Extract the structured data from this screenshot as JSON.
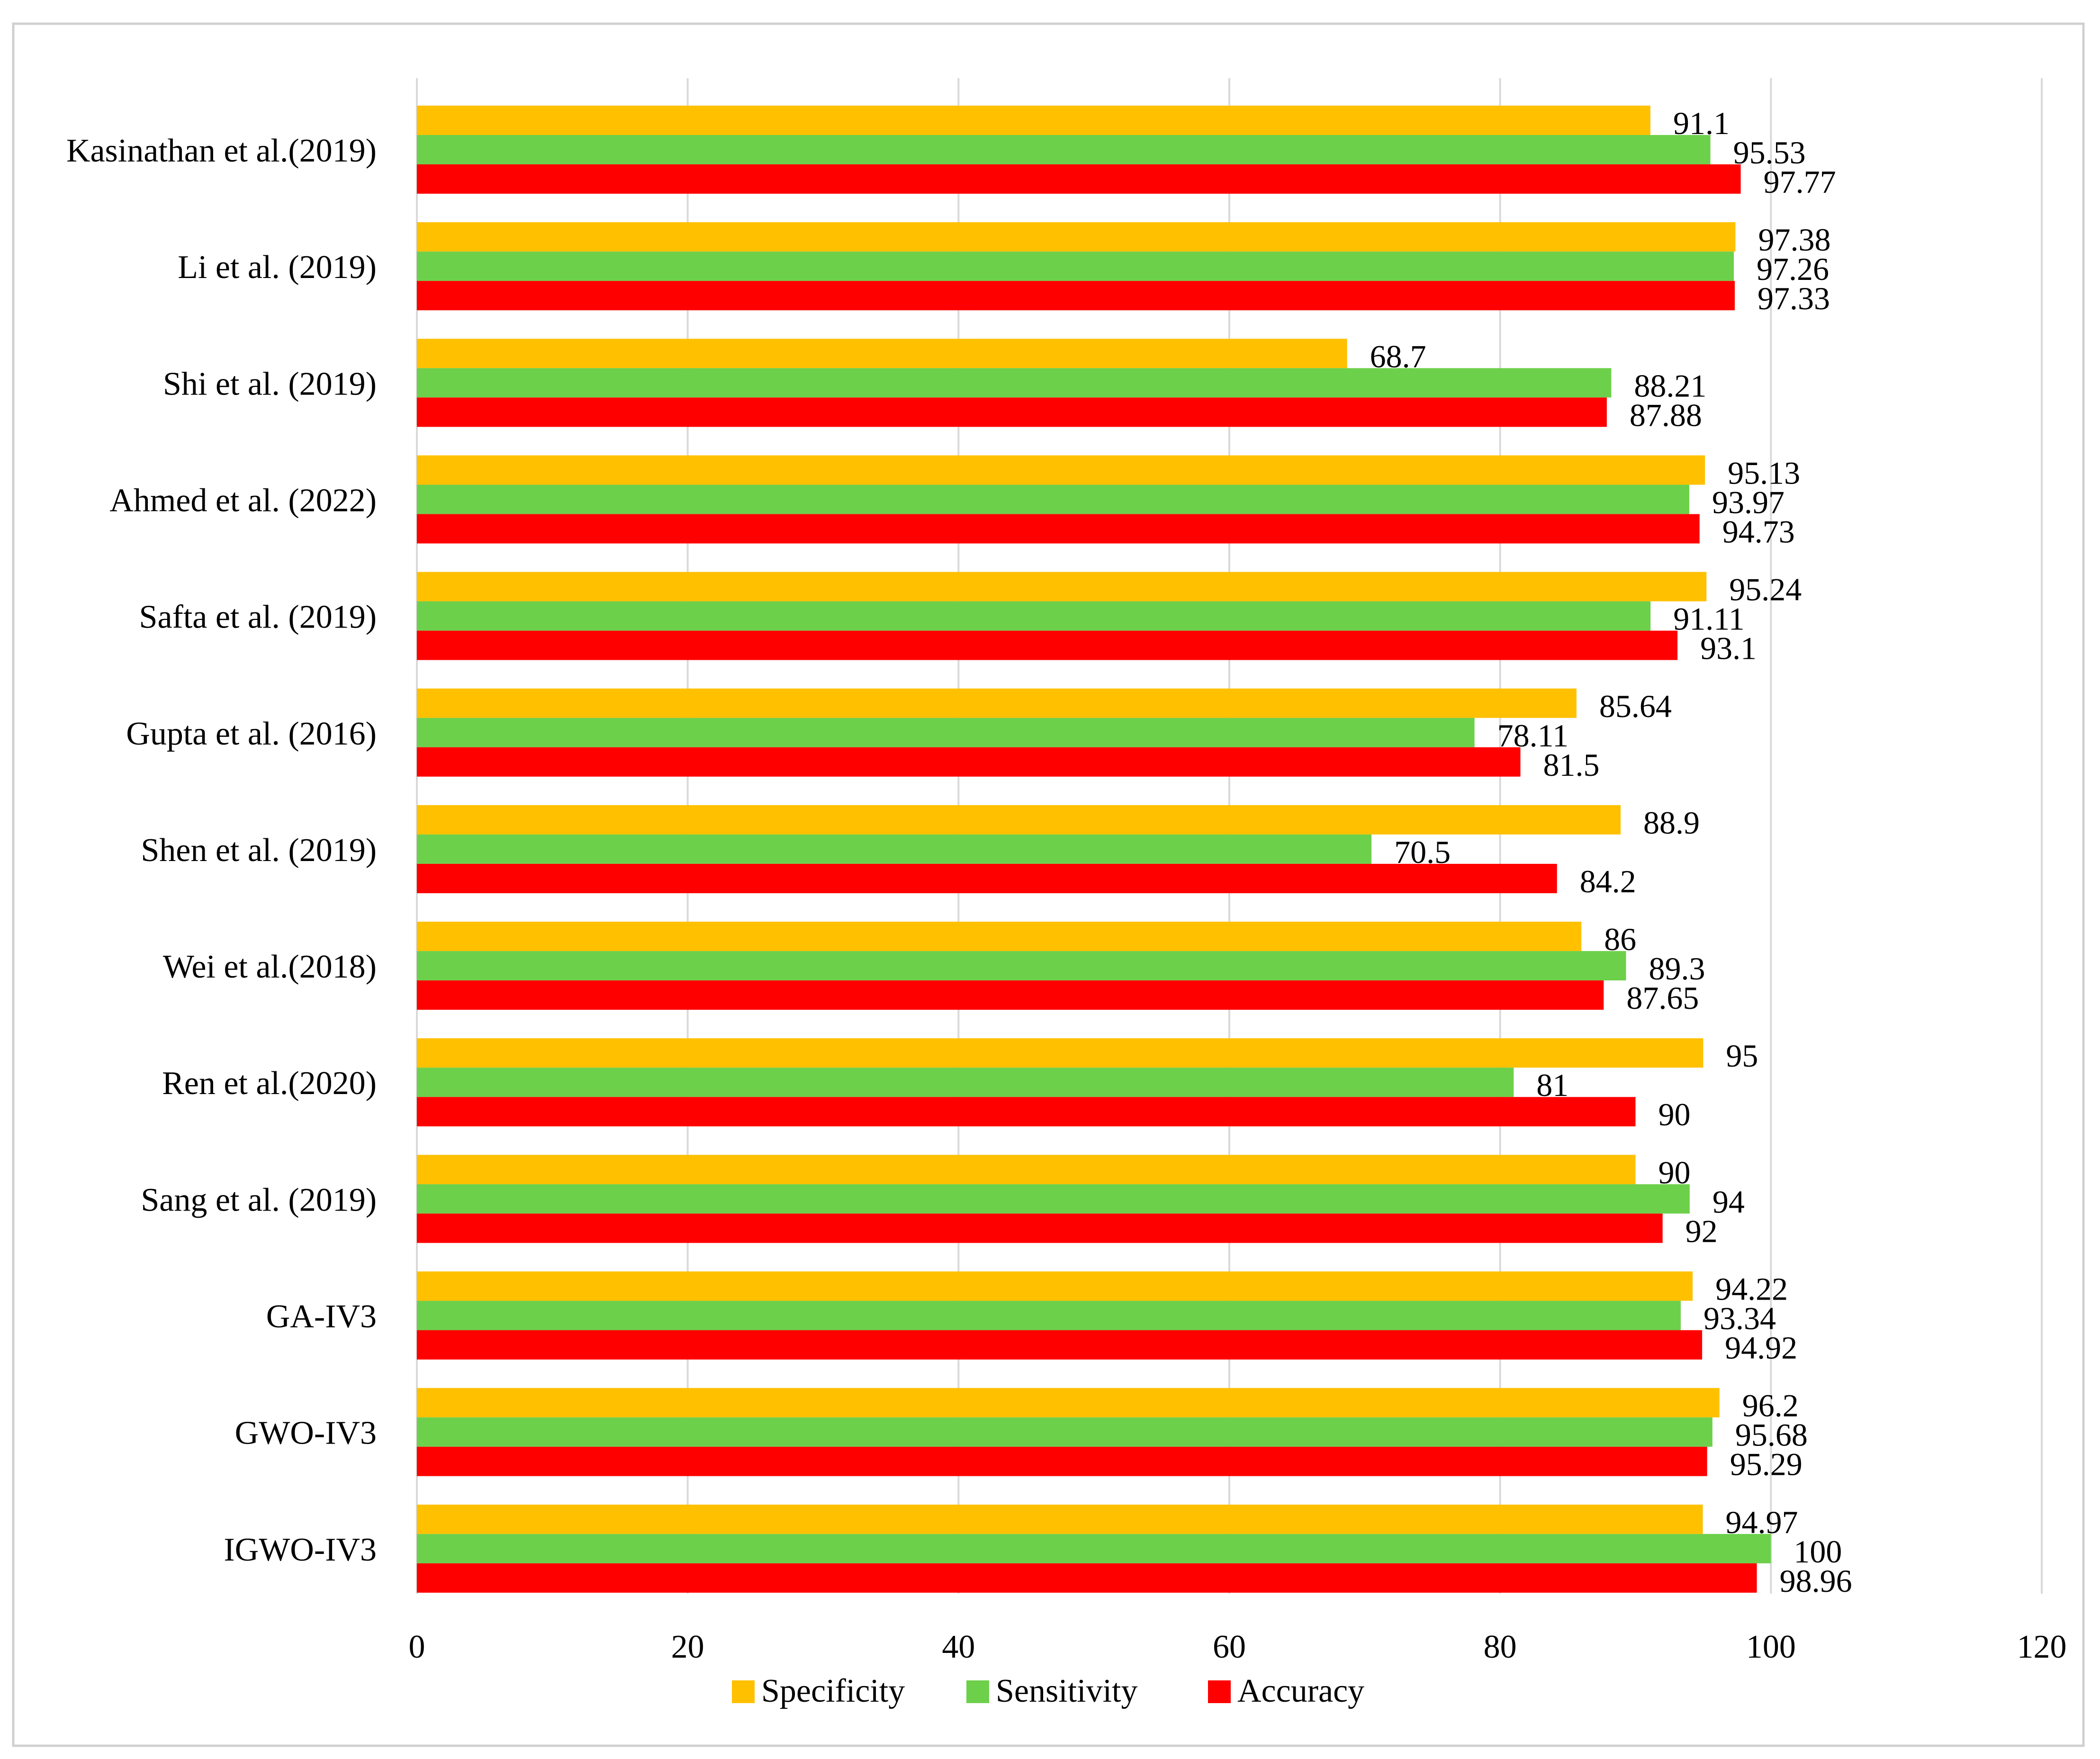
{
  "chart_data": {
    "type": "bar",
    "orientation": "horizontal",
    "title": "",
    "xlabel": "",
    "ylabel": "",
    "xlim": [
      0,
      120
    ],
    "x_ticks": [
      0,
      20,
      40,
      60,
      80,
      100,
      120
    ],
    "grid": true,
    "legend_position": "bottom",
    "categories": [
      "Kasinathan et al.(2019)",
      "Li et al. (2019)",
      "Shi et al. (2019)",
      "Ahmed et al. (2022)",
      "Safta et al. (2019)",
      "Gupta et al. (2016)",
      "Shen et al. (2019)",
      "Wei et al.(2018)",
      "Ren et al.(2020)",
      "Sang et al. (2019)",
      "GA-IV3",
      "GWO-IV3",
      "IGWO-IV3"
    ],
    "series": [
      {
        "name": "Specificity",
        "color": "#FFC000",
        "values": [
          91.1,
          97.38,
          68.7,
          95.13,
          95.24,
          85.64,
          88.9,
          86,
          95,
          90,
          94.22,
          96.2,
          94.97
        ],
        "labels": [
          "91.1",
          "97.38",
          "68.7",
          "95.13",
          "95.24",
          "85.64",
          "88.9",
          "86",
          "95",
          "90",
          "94.22",
          "96.2",
          "94.97"
        ]
      },
      {
        "name": "Sensitivity",
        "color": "#6DD04B",
        "values": [
          95.53,
          97.26,
          88.21,
          93.97,
          91.11,
          78.11,
          70.5,
          89.3,
          81,
          94,
          93.34,
          95.68,
          100
        ],
        "labels": [
          "95.53",
          "97.26",
          "88.21",
          "93.97",
          "91.11",
          "78.11",
          "70.5",
          "89.3",
          "81",
          "94",
          "93.34",
          "95.68",
          "100"
        ]
      },
      {
        "name": "Accuracy",
        "color": "#FF0000",
        "values": [
          97.77,
          97.33,
          87.88,
          94.73,
          93.1,
          81.5,
          84.2,
          87.65,
          90,
          92,
          94.92,
          95.29,
          98.96
        ],
        "labels": [
          "97.77",
          "97.33",
          "87.88",
          "94.73",
          "93.1",
          "81.5",
          "84.2",
          "87.65",
          "90",
          "92",
          "94.92",
          "95.29",
          "98.96"
        ]
      }
    ]
  }
}
